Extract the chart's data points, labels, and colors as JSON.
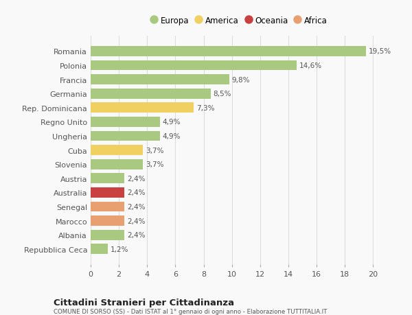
{
  "categories": [
    "Repubblica Ceca",
    "Albania",
    "Marocco",
    "Senegal",
    "Australia",
    "Austria",
    "Slovenia",
    "Cuba",
    "Ungheria",
    "Regno Unito",
    "Rep. Dominicana",
    "Germania",
    "Francia",
    "Polonia",
    "Romania"
  ],
  "values": [
    1.2,
    2.4,
    2.4,
    2.4,
    2.4,
    2.4,
    3.7,
    3.7,
    4.9,
    4.9,
    7.3,
    8.5,
    9.8,
    14.6,
    19.5
  ],
  "labels": [
    "1,2%",
    "2,4%",
    "2,4%",
    "2,4%",
    "2,4%",
    "2,4%",
    "3,7%",
    "3,7%",
    "4,9%",
    "4,9%",
    "7,3%",
    "8,5%",
    "9,8%",
    "14,6%",
    "19,5%"
  ],
  "colors": [
    "#a8c97f",
    "#a8c97f",
    "#e8a070",
    "#e8a070",
    "#c94040",
    "#a8c97f",
    "#a8c97f",
    "#f0d060",
    "#a8c97f",
    "#a8c97f",
    "#f0d060",
    "#a8c97f",
    "#a8c97f",
    "#a8c97f",
    "#a8c97f"
  ],
  "legend": [
    {
      "label": "Europa",
      "color": "#a8c97f"
    },
    {
      "label": "America",
      "color": "#f0d060"
    },
    {
      "label": "Oceania",
      "color": "#c94040"
    },
    {
      "label": "Africa",
      "color": "#e8a070"
    }
  ],
  "xlim": [
    0,
    21
  ],
  "xticks": [
    0,
    2,
    4,
    6,
    8,
    10,
    12,
    14,
    16,
    18,
    20
  ],
  "title": "Cittadini Stranieri per Cittadinanza",
  "subtitle": "COMUNE DI SORSO (SS) - Dati ISTAT al 1° gennaio di ogni anno - Elaborazione TUTTITALIA.IT",
  "background_color": "#f9f9f9",
  "grid_color": "#dddddd",
  "bar_height": 0.72
}
